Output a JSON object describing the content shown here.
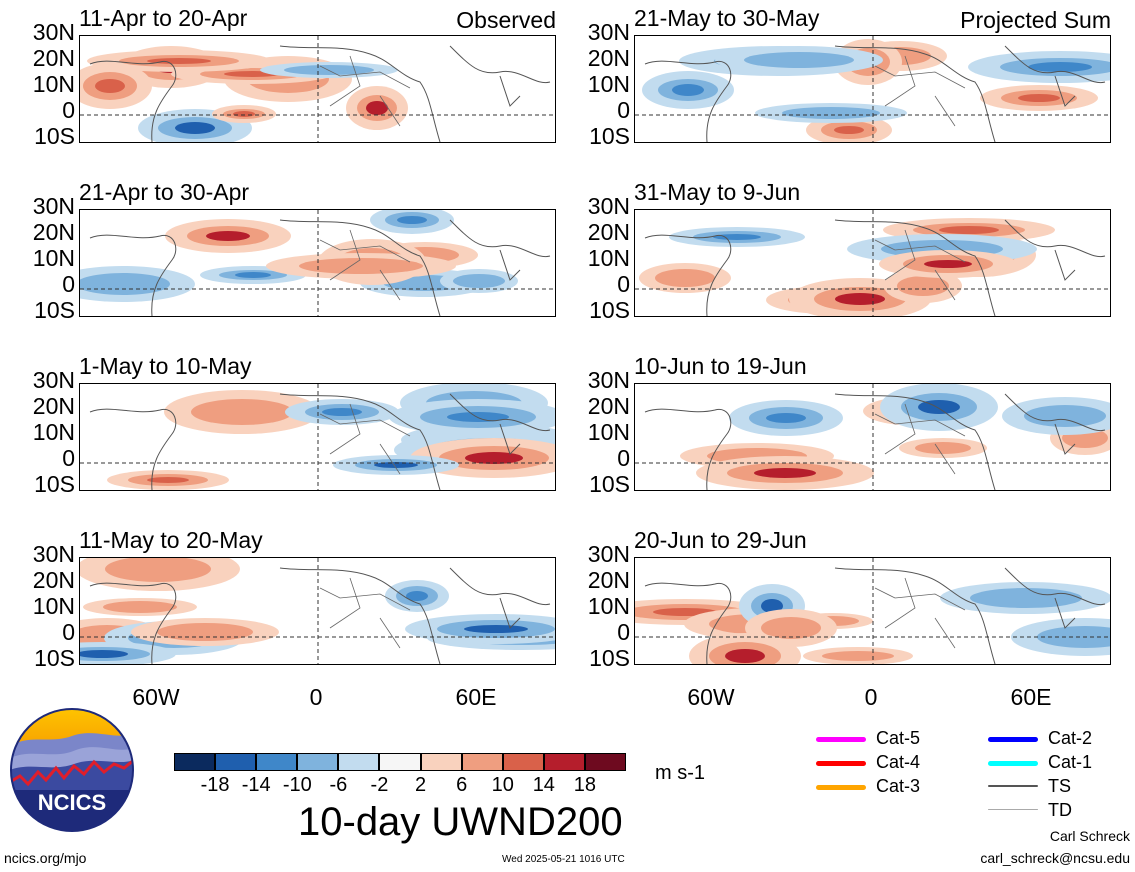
{
  "panels": [
    {
      "period": "11-Apr to 20-Apr",
      "tag": "Observed"
    },
    {
      "period": "21-Apr to 30-Apr",
      "tag": ""
    },
    {
      "period": "1-May to 10-May",
      "tag": ""
    },
    {
      "period": "11-May to 20-May",
      "tag": ""
    },
    {
      "period": "21-May to 30-May",
      "tag": "Projected Sum"
    },
    {
      "period": "31-May to 9-Jun",
      "tag": ""
    },
    {
      "period": "10-Jun to 19-Jun",
      "tag": ""
    },
    {
      "period": "20-Jun to 29-Jun",
      "tag": ""
    }
  ],
  "lat_labels": [
    "30N",
    "20N",
    "10N",
    "0",
    "10S"
  ],
  "lon_labels": [
    "60W",
    "0",
    "60E"
  ],
  "colorbar": {
    "ticks": [
      "-18",
      "-14",
      "-10",
      "-6",
      "-2",
      "2",
      "6",
      "10",
      "14",
      "18"
    ],
    "colors": [
      "#0b2a5e",
      "#1f5fae",
      "#3f87c9",
      "#7fb3dd",
      "#c2dcef",
      "#f6f6f6",
      "#f9d2be",
      "#ef9e80",
      "#d9614a",
      "#b51e2c",
      "#6e0a1f"
    ],
    "units": "m s-1"
  },
  "title": "10-day UWND200",
  "legend": [
    {
      "label": "Cat-5",
      "color": "#ff00ff",
      "weight": "heavy"
    },
    {
      "label": "Cat-4",
      "color": "#ff0000",
      "weight": "heavy"
    },
    {
      "label": "Cat-3",
      "color": "#ffa500",
      "weight": "heavy"
    },
    {
      "label": "Cat-2",
      "color": "#0000ff",
      "weight": "heavy"
    },
    {
      "label": "Cat-1",
      "color": "#00ffff",
      "weight": "heavy"
    },
    {
      "label": "TS",
      "color": "#555555",
      "weight": "medium"
    },
    {
      "label": "TD",
      "color": "#aaaaaa",
      "weight": "thin"
    }
  ],
  "logo_text": "NCICS",
  "footer": {
    "url": "ncics.org/mjo",
    "timestamp": "Wed 2025-05-21 1016 UTC",
    "author": "Carl Schreck",
    "email": "carl_schreck@ncsu.edu"
  }
}
